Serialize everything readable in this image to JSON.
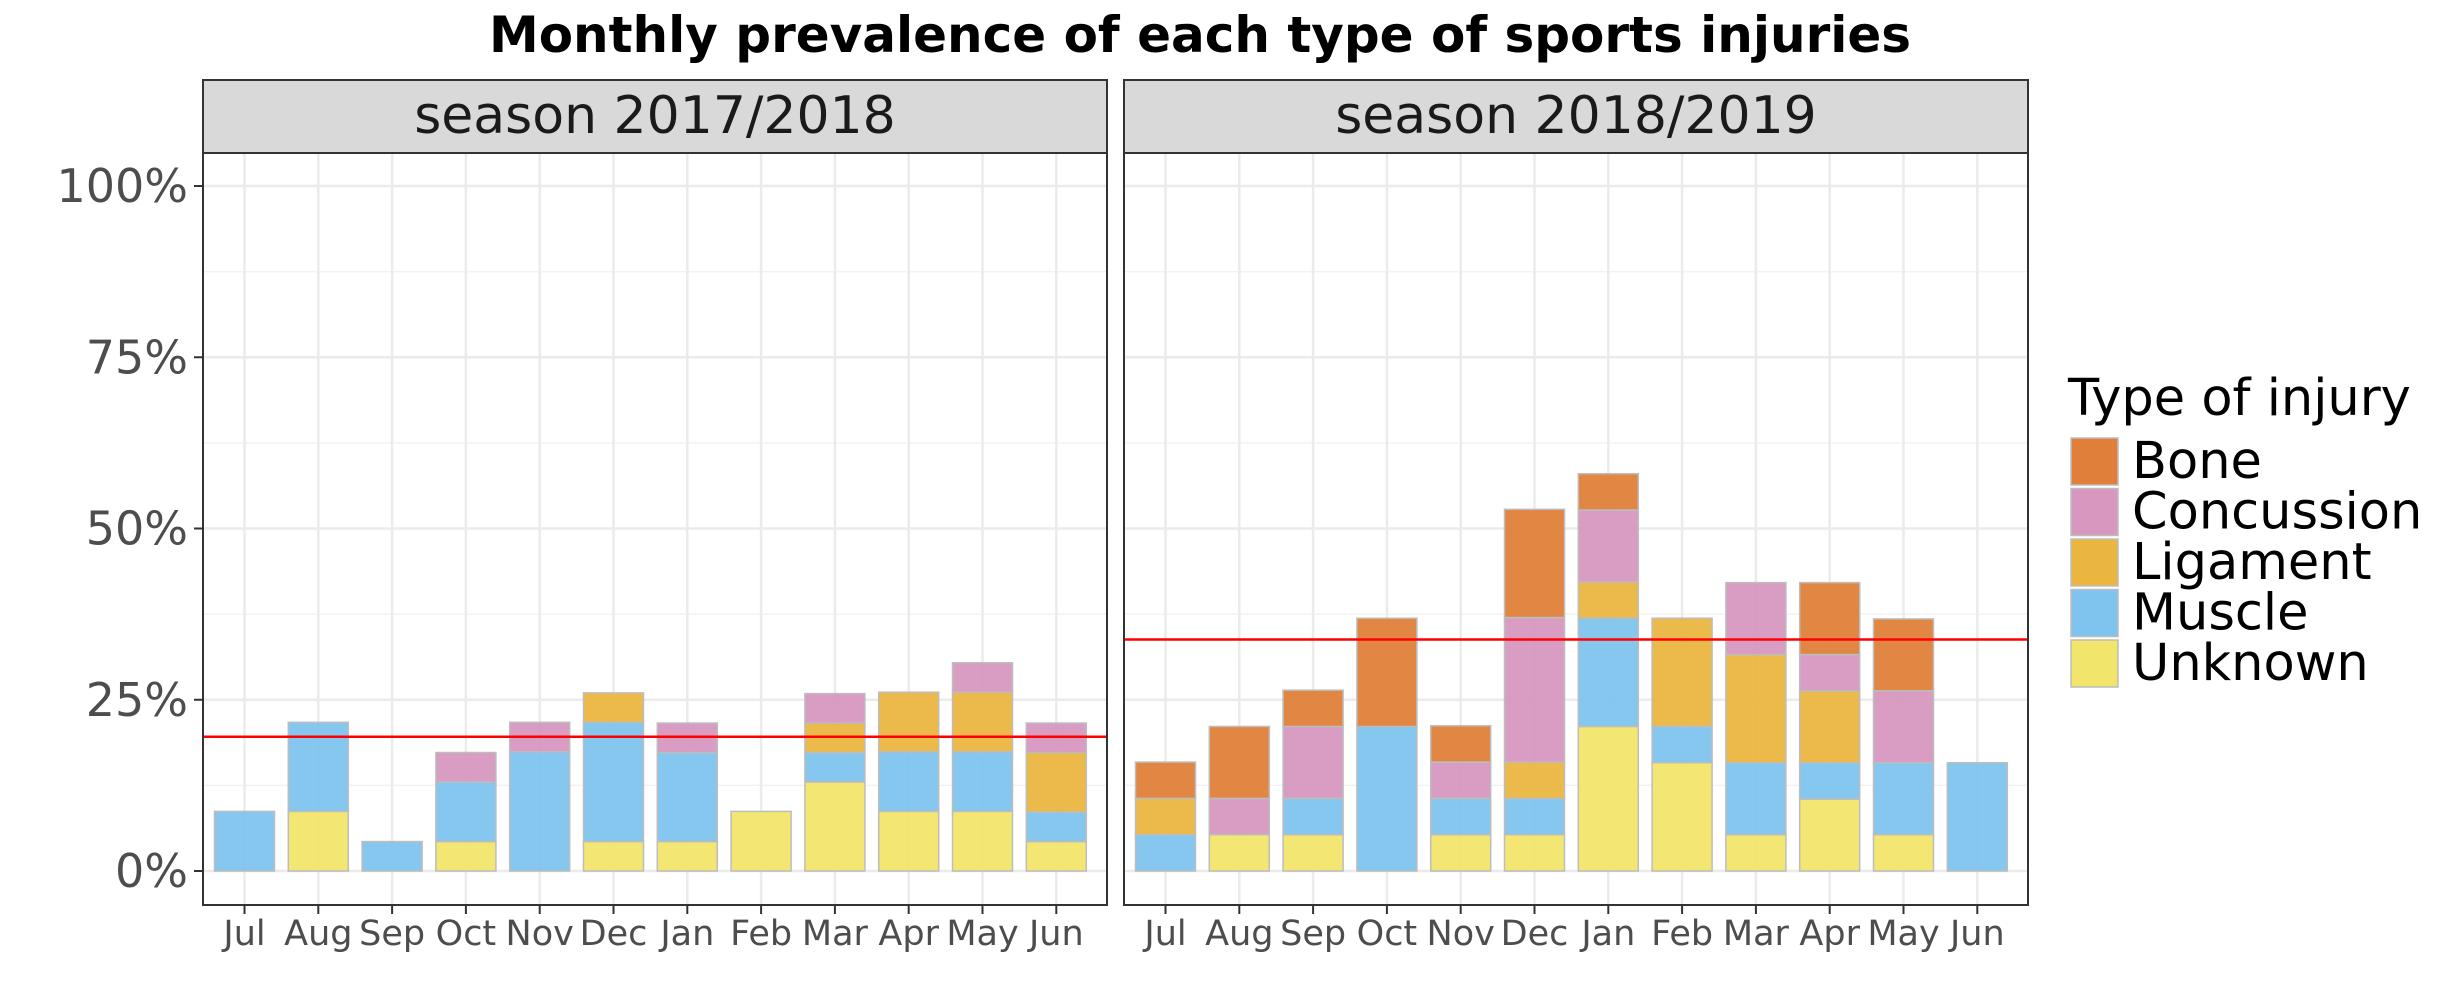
{
  "chart_data": {
    "type": "bar",
    "stacked": true,
    "title": "Monthly prevalence of each type of sports injuries",
    "ylim": [
      0,
      1
    ],
    "yticks": [
      0,
      0.25,
      0.5,
      0.75,
      1.0
    ],
    "ytick_labels": [
      "0%",
      "25%",
      "50%",
      "75%",
      "100%"
    ],
    "categories": [
      "Jul",
      "Aug",
      "Sep",
      "Oct",
      "Nov",
      "Dec",
      "Jan",
      "Feb",
      "Mar",
      "Apr",
      "May",
      "Jun"
    ],
    "legend": {
      "title": "Type of injury",
      "placement": "right",
      "entries": [
        "Bone",
        "Concussion",
        "Ligament",
        "Muscle",
        "Unknown"
      ]
    },
    "colors": {
      "Bone": "#e07f3a",
      "Concussion": "#d797bf",
      "Ligament": "#eab640",
      "Muscle": "#7fc4ee",
      "Unknown": "#f2e56c",
      "reference_line": "#ff0000"
    },
    "grid": true,
    "panels": [
      {
        "strip": "season 2017/2018",
        "reference_line": 0.196,
        "series": [
          {
            "name": "Unknown",
            "values": [
              0,
              0.087,
              0,
              0.043,
              0,
              0.043,
              0.043,
              0.087,
              0.13,
              0.087,
              0.087,
              0.043
            ]
          },
          {
            "name": "Muscle",
            "values": [
              0.087,
              0.13,
              0.043,
              0.087,
              0.174,
              0.174,
              0.13,
              0,
              0.043,
              0.087,
              0.087,
              0.043
            ]
          },
          {
            "name": "Ligament",
            "values": [
              0,
              0,
              0,
              0,
              0,
              0.043,
              0,
              0,
              0.043,
              0.087,
              0.087,
              0.087
            ]
          },
          {
            "name": "Concussion",
            "values": [
              0,
              0,
              0,
              0.043,
              0.043,
              0,
              0.043,
              0,
              0.043,
              0,
              0.043,
              0.043
            ]
          },
          {
            "name": "Bone",
            "values": [
              0,
              0,
              0,
              0,
              0,
              0,
              0,
              0,
              0,
              0,
              0,
              0
            ]
          }
        ]
      },
      {
        "strip": "season 2018/2019",
        "reference_line": 0.338,
        "series": [
          {
            "name": "Unknown",
            "values": [
              0,
              0.053,
              0.053,
              0,
              0.053,
              0.053,
              0.211,
              0.158,
              0.053,
              0.105,
              0.053,
              0
            ]
          },
          {
            "name": "Muscle",
            "values": [
              0.053,
              0,
              0.053,
              0.211,
              0.053,
              0.053,
              0.158,
              0.053,
              0.105,
              0.053,
              0.105,
              0.158
            ]
          },
          {
            "name": "Ligament",
            "values": [
              0.053,
              0,
              0,
              0,
              0,
              0.053,
              0.053,
              0.158,
              0.158,
              0.105,
              0,
              0
            ]
          },
          {
            "name": "Concussion",
            "values": [
              0,
              0.053,
              0.105,
              0,
              0.053,
              0.211,
              0.105,
              0,
              0.105,
              0.053,
              0.105,
              0
            ]
          },
          {
            "name": "Bone",
            "values": [
              0.053,
              0.105,
              0.053,
              0.158,
              0.053,
              0.158,
              0.053,
              0,
              0,
              0.105,
              0.105,
              0
            ]
          }
        ]
      }
    ]
  }
}
